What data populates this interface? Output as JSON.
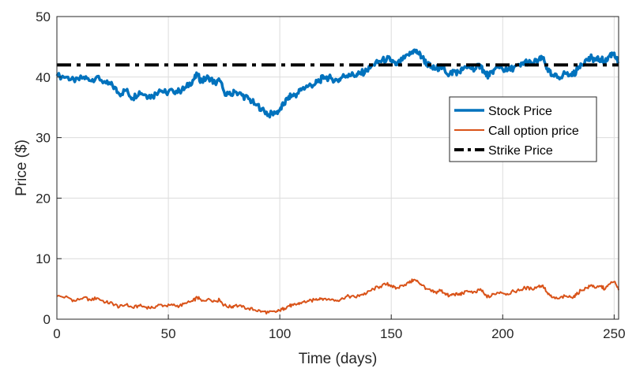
{
  "chart_data": {
    "type": "line",
    "title": "",
    "xlabel": "Time (days)",
    "ylabel": "Price ($)",
    "xlim": [
      0,
      252
    ],
    "ylim": [
      0,
      50
    ],
    "xticks": [
      0,
      50,
      100,
      150,
      200,
      250
    ],
    "yticks": [
      0,
      10,
      20,
      30,
      40,
      50
    ],
    "grid": true,
    "legend_position": "right, upper-middle",
    "series": [
      {
        "name": "Stock Price",
        "color": "#0072BD",
        "style": "solid-thick",
        "points": [
          [
            0,
            40.2
          ],
          [
            5,
            40.0
          ],
          [
            8,
            39.2
          ],
          [
            12,
            40.0
          ],
          [
            15,
            39.4
          ],
          [
            18,
            40.1
          ],
          [
            22,
            39.0
          ],
          [
            25,
            38.6
          ],
          [
            28,
            37.2
          ],
          [
            31,
            37.8
          ],
          [
            34,
            36.5
          ],
          [
            37,
            37.6
          ],
          [
            40,
            37.0
          ],
          [
            43,
            36.8
          ],
          [
            46,
            37.9
          ],
          [
            49,
            37.4
          ],
          [
            52,
            37.8
          ],
          [
            55,
            37.6
          ],
          [
            58,
            38.3
          ],
          [
            61,
            39.5
          ],
          [
            63,
            40.3
          ],
          [
            65,
            39.3
          ],
          [
            68,
            40.0
          ],
          [
            71,
            39.0
          ],
          [
            73,
            39.4
          ],
          [
            75,
            37.6
          ],
          [
            78,
            37.0
          ],
          [
            80,
            37.6
          ],
          [
            83,
            37.0
          ],
          [
            86,
            36.4
          ],
          [
            89,
            35.5
          ],
          [
            92,
            34.8
          ],
          [
            95,
            33.8
          ],
          [
            98,
            34.0
          ],
          [
            100,
            34.6
          ],
          [
            102,
            35.6
          ],
          [
            104,
            36.8
          ],
          [
            106,
            36.9
          ],
          [
            108,
            37.3
          ],
          [
            110,
            38.1
          ],
          [
            113,
            38.6
          ],
          [
            116,
            38.9
          ],
          [
            118,
            39.5
          ],
          [
            120,
            40.0
          ],
          [
            123,
            39.8
          ],
          [
            126,
            39.4
          ],
          [
            128,
            40.0
          ],
          [
            131,
            40.5
          ],
          [
            134,
            40.2
          ],
          [
            136,
            40.6
          ],
          [
            139,
            41.0
          ],
          [
            142,
            42.0
          ],
          [
            145,
            42.6
          ],
          [
            148,
            43.0
          ],
          [
            150,
            42.8
          ],
          [
            152,
            42.0
          ],
          [
            155,
            42.8
          ],
          [
            158,
            43.6
          ],
          [
            160,
            44.4
          ],
          [
            162,
            44.0
          ],
          [
            164,
            43.2
          ],
          [
            166,
            42.2
          ],
          [
            168,
            41.6
          ],
          [
            170,
            41.3
          ],
          [
            172,
            41.8
          ],
          [
            174,
            41.2
          ],
          [
            176,
            40.4
          ],
          [
            178,
            41.0
          ],
          [
            180,
            40.8
          ],
          [
            182,
            41.2
          ],
          [
            185,
            41.6
          ],
          [
            188,
            41.4
          ],
          [
            190,
            42.0
          ],
          [
            192,
            40.6
          ],
          [
            194,
            40.2
          ],
          [
            196,
            41.2
          ],
          [
            199,
            41.6
          ],
          [
            202,
            41.0
          ],
          [
            205,
            41.6
          ],
          [
            208,
            41.8
          ],
          [
            210,
            42.6
          ],
          [
            213,
            42.2
          ],
          [
            216,
            42.8
          ],
          [
            218,
            43.0
          ],
          [
            220,
            41.4
          ],
          [
            222,
            40.2
          ],
          [
            225,
            40.0
          ],
          [
            228,
            40.6
          ],
          [
            231,
            40.2
          ],
          [
            233,
            41.0
          ],
          [
            235,
            42.2
          ],
          [
            238,
            42.8
          ],
          [
            240,
            43.2
          ],
          [
            242,
            42.8
          ],
          [
            244,
            43.0
          ],
          [
            246,
            42.4
          ],
          [
            248,
            43.6
          ],
          [
            250,
            44.0
          ],
          [
            252,
            42.2
          ]
        ]
      },
      {
        "name": "Call option price",
        "color": "#D95319",
        "style": "solid-thin",
        "points": [
          [
            0,
            3.8
          ],
          [
            5,
            3.6
          ],
          [
            8,
            3.0
          ],
          [
            12,
            3.6
          ],
          [
            15,
            3.2
          ],
          [
            18,
            3.5
          ],
          [
            22,
            2.8
          ],
          [
            25,
            2.6
          ],
          [
            28,
            2.0
          ],
          [
            31,
            2.4
          ],
          [
            34,
            1.9
          ],
          [
            37,
            2.2
          ],
          [
            40,
            2.0
          ],
          [
            43,
            1.9
          ],
          [
            46,
            2.4
          ],
          [
            49,
            2.2
          ],
          [
            52,
            2.3
          ],
          [
            55,
            2.2
          ],
          [
            58,
            2.6
          ],
          [
            61,
            3.0
          ],
          [
            63,
            3.6
          ],
          [
            65,
            3.0
          ],
          [
            68,
            3.4
          ],
          [
            71,
            3.0
          ],
          [
            73,
            3.2
          ],
          [
            75,
            2.3
          ],
          [
            78,
            2.0
          ],
          [
            80,
            2.3
          ],
          [
            83,
            2.0
          ],
          [
            86,
            1.8
          ],
          [
            89,
            1.5
          ],
          [
            92,
            1.3
          ],
          [
            95,
            1.1
          ],
          [
            98,
            1.2
          ],
          [
            100,
            1.4
          ],
          [
            102,
            1.8
          ],
          [
            104,
            2.2
          ],
          [
            106,
            2.3
          ],
          [
            108,
            2.5
          ],
          [
            110,
            2.8
          ],
          [
            113,
            3.0
          ],
          [
            116,
            3.2
          ],
          [
            118,
            3.5
          ],
          [
            120,
            3.4
          ],
          [
            123,
            3.2
          ],
          [
            126,
            3.1
          ],
          [
            128,
            3.5
          ],
          [
            131,
            3.8
          ],
          [
            134,
            3.6
          ],
          [
            136,
            4.0
          ],
          [
            139,
            4.3
          ],
          [
            142,
            5.0
          ],
          [
            145,
            5.4
          ],
          [
            148,
            5.8
          ],
          [
            150,
            5.6
          ],
          [
            152,
            5.0
          ],
          [
            155,
            5.6
          ],
          [
            158,
            6.0
          ],
          [
            160,
            6.5
          ],
          [
            162,
            6.2
          ],
          [
            164,
            5.6
          ],
          [
            166,
            5.0
          ],
          [
            168,
            4.6
          ],
          [
            170,
            4.4
          ],
          [
            172,
            4.8
          ],
          [
            174,
            4.3
          ],
          [
            176,
            3.8
          ],
          [
            178,
            4.2
          ],
          [
            180,
            4.0
          ],
          [
            182,
            4.3
          ],
          [
            185,
            4.6
          ],
          [
            188,
            4.4
          ],
          [
            190,
            5.0
          ],
          [
            192,
            4.0
          ],
          [
            194,
            3.6
          ],
          [
            196,
            4.2
          ],
          [
            199,
            4.5
          ],
          [
            202,
            4.2
          ],
          [
            205,
            4.6
          ],
          [
            208,
            4.8
          ],
          [
            210,
            5.2
          ],
          [
            213,
            5.0
          ],
          [
            216,
            5.4
          ],
          [
            218,
            5.6
          ],
          [
            220,
            4.4
          ],
          [
            222,
            3.6
          ],
          [
            225,
            3.4
          ],
          [
            228,
            3.8
          ],
          [
            231,
            3.6
          ],
          [
            233,
            4.0
          ],
          [
            235,
            4.8
          ],
          [
            238,
            5.2
          ],
          [
            240,
            5.6
          ],
          [
            242,
            5.2
          ],
          [
            244,
            5.4
          ],
          [
            246,
            5.0
          ],
          [
            248,
            5.8
          ],
          [
            250,
            6.2
          ],
          [
            252,
            4.8
          ]
        ]
      },
      {
        "name": "Strike Price",
        "color": "#000000",
        "style": "dash-dot-thick",
        "points": [
          [
            0,
            42
          ],
          [
            252,
            42
          ]
        ]
      }
    ]
  }
}
